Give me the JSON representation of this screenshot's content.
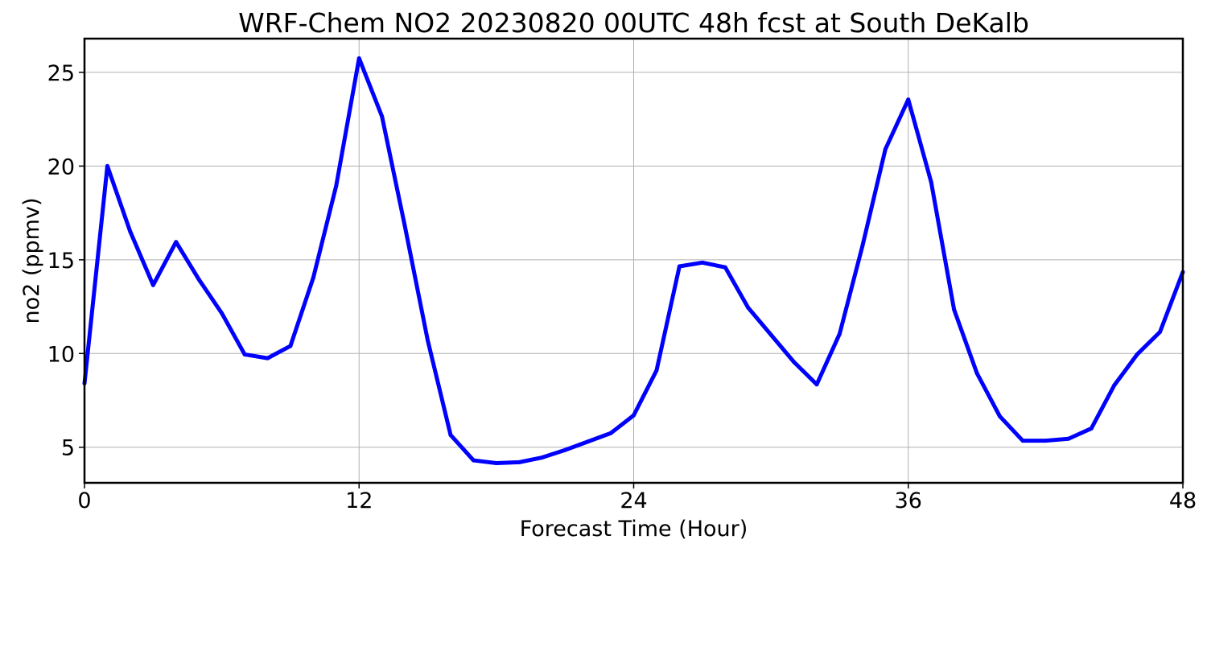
{
  "chart_data": {
    "type": "line",
    "title": "WRF-Chem NO2  20230820 00UTC 48h fcst at South DeKalb",
    "xlabel": "Forecast Time (Hour)",
    "ylabel": "no2  (ppmv)",
    "xlim": [
      0,
      48
    ],
    "ylim": [
      3.1,
      26.8
    ],
    "xticks": [
      0,
      12,
      24,
      36,
      48
    ],
    "yticks": [
      5,
      10,
      15,
      20,
      25
    ],
    "grid": true,
    "legend": "none",
    "series": [
      {
        "color": "#0000ff",
        "x": [
          0,
          1,
          2,
          3,
          4,
          5,
          6,
          7,
          8,
          9,
          10,
          11,
          12,
          13,
          14,
          15,
          16,
          17,
          18,
          19,
          20,
          21,
          22,
          23,
          24,
          25,
          26,
          27,
          28,
          29,
          30,
          31,
          32,
          33,
          34,
          35,
          36,
          37,
          38,
          39,
          40,
          41,
          42,
          43,
          44,
          45,
          46,
          47,
          48
        ],
        "y": [
          8.4,
          20.0,
          16.5,
          13.65,
          15.95,
          13.95,
          12.15,
          9.95,
          9.75,
          10.4,
          14.05,
          18.95,
          25.75,
          22.65,
          16.8,
          10.7,
          5.65,
          4.3,
          4.15,
          4.2,
          4.45,
          4.85,
          5.3,
          5.75,
          6.7,
          9.1,
          14.65,
          14.85,
          14.6,
          12.45,
          11.0,
          9.55,
          8.35,
          11.05,
          15.75,
          20.9,
          23.55,
          19.15,
          12.35,
          8.95,
          6.65,
          5.35,
          5.35,
          5.45,
          6.0,
          8.3,
          9.95,
          11.15,
          14.35
        ]
      }
    ]
  }
}
